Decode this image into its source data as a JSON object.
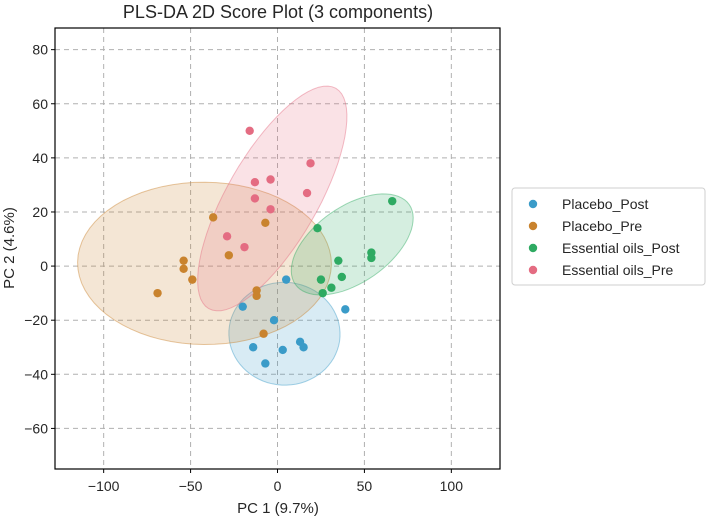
{
  "chart_data": {
    "type": "scatter",
    "title": "PLS-DA 2D Score Plot (3 components)",
    "xlabel": "PC 1 (9.7%)",
    "ylabel": "PC 2 (4.6%)",
    "xlim": [
      -128,
      128
    ],
    "ylim": [
      -75,
      88
    ],
    "xticks": [
      -100,
      -50,
      0,
      50,
      100
    ],
    "xtick_labels": [
      "−100",
      "−50",
      "0",
      "50",
      "100"
    ],
    "yticks": [
      -60,
      -40,
      -20,
      0,
      20,
      40,
      60,
      80
    ],
    "ytick_labels": [
      "−60",
      "−40",
      "−20",
      "0",
      "20",
      "40",
      "60",
      "80"
    ],
    "grid": true,
    "legend_position": "right",
    "series": [
      {
        "name": "Placebo_Post",
        "color": "#3a9bc8",
        "points": [
          [
            -20,
            -15
          ],
          [
            -14,
            -30
          ],
          [
            -7,
            -36
          ],
          [
            -2,
            -20
          ],
          [
            3,
            -31
          ],
          [
            13,
            -28
          ],
          [
            15,
            -30
          ],
          [
            5,
            -5
          ],
          [
            39,
            -16
          ]
        ],
        "ellipse": {
          "cx": 4,
          "cy": -25,
          "rx": 32,
          "ry": 19,
          "angle": -3
        }
      },
      {
        "name": "Placebo_Pre",
        "color": "#c9832e",
        "points": [
          [
            -69,
            -10
          ],
          [
            -54,
            2
          ],
          [
            -54,
            -1
          ],
          [
            -49,
            -5
          ],
          [
            -37,
            18
          ],
          [
            -28,
            4
          ],
          [
            -12,
            -9
          ],
          [
            -12,
            -11
          ],
          [
            -8,
            -25
          ],
          [
            -7,
            16
          ]
        ],
        "ellipse": {
          "cx": -42,
          "cy": 1,
          "rx": 73,
          "ry": 30,
          "angle": -0.5
        }
      },
      {
        "name": "Essential oils_Post",
        "color": "#2eaa62",
        "points": [
          [
            66,
            24
          ],
          [
            23,
            14
          ],
          [
            54,
            5
          ],
          [
            54,
            3
          ],
          [
            35,
            2
          ],
          [
            37,
            -4
          ],
          [
            25,
            -5
          ],
          [
            31,
            -8
          ],
          [
            26,
            -10
          ]
        ],
        "ellipse": {
          "cx": 43,
          "cy": 8,
          "rx": 40,
          "ry": 14,
          "angle": 35
        }
      },
      {
        "name": "Essential oils_Pre",
        "color": "#e46c82",
        "points": [
          [
            -16,
            50
          ],
          [
            19,
            38
          ],
          [
            -4,
            32
          ],
          [
            -13,
            31
          ],
          [
            17,
            27
          ],
          [
            -13,
            25
          ],
          [
            -4,
            21
          ],
          [
            -29,
            11
          ],
          [
            -19,
            7
          ]
        ],
        "ellipse": {
          "cx": -3,
          "cy": 25,
          "rx": 26,
          "ry": 47,
          "angle": -30
        }
      }
    ]
  }
}
